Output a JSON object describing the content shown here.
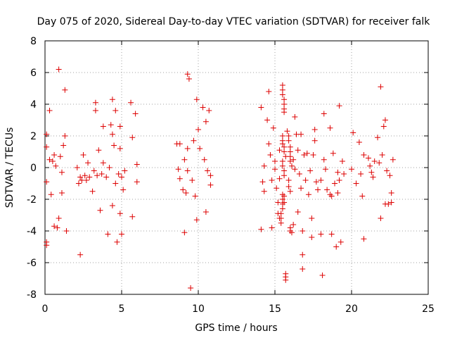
{
  "chart_data": {
    "type": "scatter",
    "title": "Day 075 of 2020, Sidereal Day-to-day VTEC variation (SDTVAR) for receiver falk",
    "xlabel": "GPS time / hours",
    "ylabel": "SDTVAR / TECUs",
    "xlim": [
      0,
      25
    ],
    "ylim": [
      -8,
      8
    ],
    "xticks": [
      "0",
      "5",
      "10",
      "15",
      "20",
      "25"
    ],
    "yticks": [
      "-8",
      "-6",
      "-4",
      "-2",
      "0",
      "2",
      "4",
      "6",
      "8"
    ],
    "grid": true,
    "marker": "plus",
    "color": "#dd0000",
    "series": [
      {
        "name": "SDTVAR",
        "points": [
          [
            0.1,
            2.1
          ],
          [
            0.1,
            1.3
          ],
          [
            0.1,
            -0.9
          ],
          [
            0.1,
            -4.7
          ],
          [
            0.1,
            -4.9
          ],
          [
            0.3,
            0.5
          ],
          [
            0.3,
            3.6
          ],
          [
            0.4,
            -1.7
          ],
          [
            0.5,
            0.4
          ],
          [
            0.6,
            0.8
          ],
          [
            0.6,
            -3.7
          ],
          [
            0.7,
            0.1
          ],
          [
            0.8,
            -3.8
          ],
          [
            0.9,
            6.2
          ],
          [
            0.9,
            -3.2
          ],
          [
            1.0,
            0.7
          ],
          [
            1.1,
            -0.3
          ],
          [
            1.1,
            -1.6
          ],
          [
            1.2,
            1.4
          ],
          [
            1.3,
            2.0
          ],
          [
            1.3,
            4.9
          ],
          [
            1.4,
            -4.0
          ],
          [
            2.1,
            0.0
          ],
          [
            2.2,
            -1.0
          ],
          [
            2.3,
            -0.6
          ],
          [
            2.3,
            -5.5
          ],
          [
            2.4,
            -0.8
          ],
          [
            2.5,
            0.8
          ],
          [
            2.6,
            -0.5
          ],
          [
            2.7,
            -0.8
          ],
          [
            2.8,
            0.3
          ],
          [
            2.9,
            -0.6
          ],
          [
            3.1,
            -1.5
          ],
          [
            3.2,
            -0.2
          ],
          [
            3.3,
            4.1
          ],
          [
            3.3,
            3.6
          ],
          [
            3.4,
            -0.5
          ],
          [
            3.5,
            1.1
          ],
          [
            3.6,
            -2.7
          ],
          [
            3.7,
            -0.4
          ],
          [
            3.8,
            2.6
          ],
          [
            3.8,
            0.3
          ],
          [
            4.0,
            -0.6
          ],
          [
            4.1,
            -4.2
          ],
          [
            4.2,
            0.0
          ],
          [
            4.3,
            2.7
          ],
          [
            4.4,
            4.3
          ],
          [
            4.4,
            2.1
          ],
          [
            4.4,
            -2.4
          ],
          [
            4.5,
            1.4
          ],
          [
            4.6,
            3.6
          ],
          [
            4.6,
            -1.0
          ],
          [
            4.7,
            -4.7
          ],
          [
            4.8,
            -0.4
          ],
          [
            4.9,
            2.6
          ],
          [
            4.9,
            1.2
          ],
          [
            4.9,
            -2.9
          ],
          [
            5.0,
            -0.6
          ],
          [
            5.0,
            -4.2
          ],
          [
            5.1,
            -1.4
          ],
          [
            5.2,
            -0.2
          ],
          [
            5.6,
            4.1
          ],
          [
            5.7,
            1.9
          ],
          [
            5.7,
            -3.1
          ],
          [
            5.9,
            3.4
          ],
          [
            6.0,
            0.2
          ],
          [
            6.0,
            -0.9
          ],
          [
            8.6,
            1.5
          ],
          [
            8.7,
            -0.1
          ],
          [
            8.8,
            1.5
          ],
          [
            8.8,
            -0.7
          ],
          [
            9.0,
            -1.4
          ],
          [
            9.1,
            -4.1
          ],
          [
            9.1,
            0.5
          ],
          [
            9.2,
            -1.6
          ],
          [
            9.3,
            1.2
          ],
          [
            9.3,
            5.9
          ],
          [
            9.3,
            -0.2
          ],
          [
            9.4,
            5.6
          ],
          [
            9.5,
            -7.6
          ],
          [
            9.6,
            -0.8
          ],
          [
            9.7,
            1.7
          ],
          [
            9.8,
            -1.8
          ],
          [
            9.9,
            4.3
          ],
          [
            9.9,
            -3.3
          ],
          [
            10.0,
            2.4
          ],
          [
            10.1,
            1.2
          ],
          [
            10.3,
            3.8
          ],
          [
            10.4,
            0.5
          ],
          [
            10.5,
            2.9
          ],
          [
            10.5,
            -2.8
          ],
          [
            10.6,
            -0.2
          ],
          [
            10.7,
            3.6
          ],
          [
            10.8,
            -0.5
          ],
          [
            10.8,
            -1.1
          ],
          [
            14.1,
            3.8
          ],
          [
            14.1,
            -3.9
          ],
          [
            14.2,
            -0.9
          ],
          [
            14.3,
            -1.5
          ],
          [
            14.3,
            0.1
          ],
          [
            14.5,
            3.0
          ],
          [
            14.6,
            4.8
          ],
          [
            14.6,
            1.5
          ],
          [
            14.7,
            0.8
          ],
          [
            14.8,
            -0.8
          ],
          [
            14.8,
            -3.8
          ],
          [
            14.9,
            2.5
          ],
          [
            15.0,
            0.4
          ],
          [
            15.0,
            -0.1
          ],
          [
            15.1,
            -1.3
          ],
          [
            15.2,
            -2.2
          ],
          [
            15.2,
            -2.9
          ],
          [
            15.3,
            1.1
          ],
          [
            15.3,
            -0.7
          ],
          [
            15.3,
            -3.2
          ],
          [
            15.5,
            5.2
          ],
          [
            15.5,
            4.9
          ],
          [
            15.5,
            4.6
          ],
          [
            15.6,
            4.3
          ],
          [
            15.6,
            4.0
          ],
          [
            15.6,
            3.7
          ],
          [
            15.6,
            3.5
          ],
          [
            15.5,
            2.0
          ],
          [
            15.5,
            1.7
          ],
          [
            15.5,
            1.5
          ],
          [
            15.6,
            1.3
          ],
          [
            15.6,
            1.0
          ],
          [
            15.7,
            0.7
          ],
          [
            15.5,
            0.4
          ],
          [
            15.5,
            0.1
          ],
          [
            15.6,
            -0.2
          ],
          [
            15.6,
            -0.5
          ],
          [
            15.5,
            -1.7
          ],
          [
            15.5,
            -2.0
          ],
          [
            15.5,
            -2.3
          ],
          [
            15.5,
            -2.6
          ],
          [
            15.4,
            -2.9
          ],
          [
            15.4,
            -3.2
          ],
          [
            15.4,
            -3.5
          ],
          [
            15.6,
            -1.8
          ],
          [
            15.6,
            -2.2
          ],
          [
            15.7,
            -6.7
          ],
          [
            15.7,
            -6.9
          ],
          [
            15.7,
            -7.1
          ],
          [
            15.8,
            2.3
          ],
          [
            15.9,
            2.0
          ],
          [
            15.9,
            1.7
          ],
          [
            16.0,
            1.3
          ],
          [
            16.0,
            1.0
          ],
          [
            16.0,
            0.7
          ],
          [
            16.0,
            0.4
          ],
          [
            16.1,
            0.1
          ],
          [
            15.9,
            -0.8
          ],
          [
            15.9,
            -1.2
          ],
          [
            16.0,
            -1.5
          ],
          [
            16.0,
            -3.8
          ],
          [
            16.0,
            -4.0
          ],
          [
            16.1,
            -4.1
          ],
          [
            16.2,
            -3.6
          ],
          [
            16.2,
            0.5
          ],
          [
            16.3,
            3.2
          ],
          [
            16.3,
            -0.1
          ],
          [
            16.4,
            2.1
          ],
          [
            16.5,
            -2.8
          ],
          [
            16.5,
            1.1
          ],
          [
            16.6,
            -0.4
          ],
          [
            16.7,
            2.1
          ],
          [
            16.7,
            -1.3
          ],
          [
            16.8,
            -4.0
          ],
          [
            16.8,
            -5.5
          ],
          [
            16.8,
            -6.4
          ],
          [
            16.9,
            0.8
          ],
          [
            17.0,
            -0.8
          ],
          [
            17.1,
            0.9
          ],
          [
            17.2,
            -1.7
          ],
          [
            17.3,
            -0.2
          ],
          [
            17.4,
            -3.2
          ],
          [
            17.4,
            -4.4
          ],
          [
            17.5,
            0.8
          ],
          [
            17.6,
            2.4
          ],
          [
            17.6,
            1.7
          ],
          [
            17.7,
            -0.9
          ],
          [
            17.8,
            -1.4
          ],
          [
            18.0,
            -4.2
          ],
          [
            18.0,
            -0.8
          ],
          [
            18.1,
            -6.8
          ],
          [
            18.2,
            0.5
          ],
          [
            18.2,
            3.4
          ],
          [
            18.3,
            -0.1
          ],
          [
            18.4,
            -1.4
          ],
          [
            18.6,
            -1.7
          ],
          [
            18.6,
            2.5
          ],
          [
            18.7,
            -1.8
          ],
          [
            18.7,
            -4.2
          ],
          [
            18.8,
            0.9
          ],
          [
            18.9,
            -1.0
          ],
          [
            19.0,
            -5.0
          ],
          [
            19.1,
            -1.6
          ],
          [
            19.1,
            -0.3
          ],
          [
            19.2,
            -0.8
          ],
          [
            19.2,
            3.9
          ],
          [
            19.3,
            -4.7
          ],
          [
            19.4,
            0.4
          ],
          [
            19.5,
            -0.4
          ],
          [
            20.0,
            -0.1
          ],
          [
            20.1,
            2.2
          ],
          [
            20.3,
            -1.0
          ],
          [
            20.5,
            1.6
          ],
          [
            20.6,
            -0.4
          ],
          [
            20.7,
            -1.8
          ],
          [
            20.8,
            -4.5
          ],
          [
            20.8,
            0.8
          ],
          [
            21.1,
            0.6
          ],
          [
            21.2,
            0.1
          ],
          [
            21.3,
            -0.3
          ],
          [
            21.4,
            -0.6
          ],
          [
            21.5,
            0.4
          ],
          [
            21.7,
            1.9
          ],
          [
            21.8,
            0.3
          ],
          [
            21.9,
            -3.2
          ],
          [
            21.9,
            5.1
          ],
          [
            22.0,
            0.8
          ],
          [
            22.1,
            2.6
          ],
          [
            22.2,
            3.0
          ],
          [
            22.2,
            -2.3
          ],
          [
            22.3,
            -0.2
          ],
          [
            22.4,
            -2.3
          ],
          [
            22.5,
            -0.5
          ],
          [
            22.6,
            -2.2
          ],
          [
            22.6,
            -1.6
          ],
          [
            22.7,
            0.5
          ]
        ]
      }
    ]
  }
}
